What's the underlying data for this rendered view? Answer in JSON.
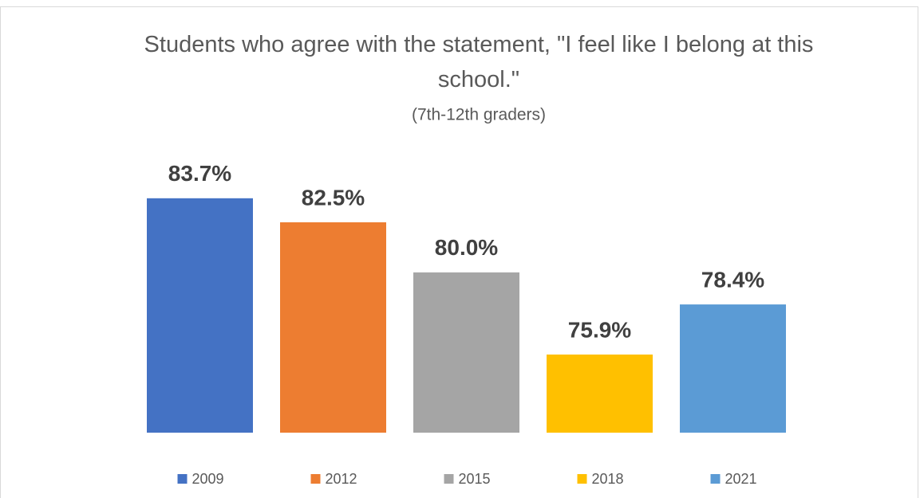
{
  "chart_data": {
    "type": "bar",
    "title": "Students who agree with the statement, \"I feel like I belong at this school.\"",
    "subtitle": "(7th-12th graders)",
    "series": [
      {
        "name": "2009",
        "color": "#4472c4",
        "values": [
          83.7
        ],
        "value_labels": [
          "83.7%"
        ]
      },
      {
        "name": "2012",
        "color": "#ed7d31",
        "values": [
          82.5
        ],
        "value_labels": [
          "82.5%"
        ]
      },
      {
        "name": "2015",
        "color": "#a5a5a5",
        "values": [
          80.0
        ],
        "value_labels": [
          "80.0%"
        ]
      },
      {
        "name": "2018",
        "color": "#ffc000",
        "values": [
          75.9
        ],
        "value_labels": [
          "75.9%"
        ]
      },
      {
        "name": "2021",
        "color": "#5b9bd5",
        "values": [
          78.4
        ],
        "value_labels": [
          "78.4%"
        ]
      }
    ],
    "ylim": [
      72,
      86
    ],
    "legend": "bottom"
  }
}
